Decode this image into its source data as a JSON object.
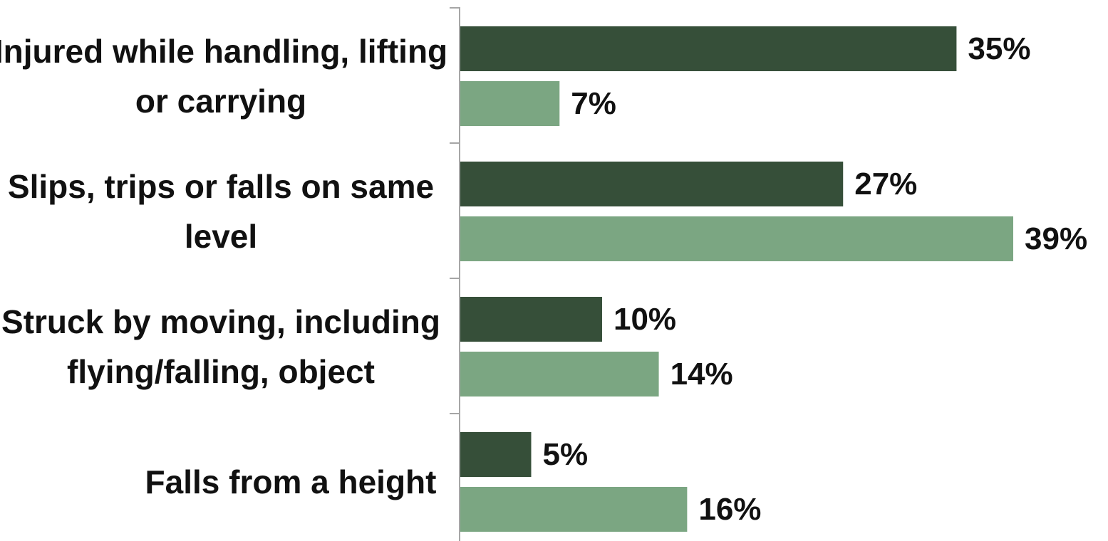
{
  "chart_data": {
    "type": "bar",
    "orientation": "horizontal",
    "categories": [
      [
        "Injured while handling, lifting",
        "or carrying"
      ],
      [
        "Slips, trips or falls on same",
        "level"
      ],
      [
        "Struck by moving, including",
        "flying/falling, object"
      ],
      [
        "Falls from a height"
      ]
    ],
    "series": [
      {
        "values": [
          35,
          27,
          10,
          5
        ],
        "labels": [
          "35%",
          "27%",
          "10%",
          "5%"
        ],
        "color": "#364F39"
      },
      {
        "values": [
          7,
          39,
          14,
          16
        ],
        "labels": [
          "7%",
          "39%",
          "14%",
          "16%"
        ],
        "color": "#7BA682"
      }
    ],
    "value_unit": "%",
    "xlim": [
      0,
      39
    ],
    "grid": false,
    "legend": "none",
    "axis_color": "#A6A6A6"
  }
}
